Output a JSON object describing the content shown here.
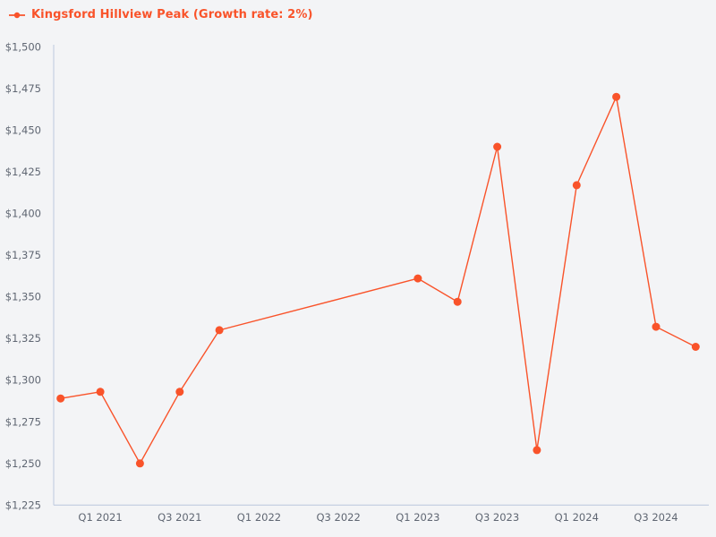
{
  "legend": {
    "label": "Kingsford Hillview Peak (Growth rate: 2%)"
  },
  "colors": {
    "accent": "#f9532a",
    "background": "#f3f4f6",
    "axis_line": "#c5cfe2",
    "tick_text": "#5f6672"
  },
  "chart_data": {
    "type": "line",
    "title": "Kingsford Hillview Peak (Growth rate: 2%)",
    "legend_position": "upper-left",
    "grid": false,
    "xlabel": "",
    "ylabel": "",
    "ylim": [
      1225,
      1500
    ],
    "y_tick_step": 25,
    "y_ticks": [
      {
        "label": "$1,500",
        "value": 1500
      },
      {
        "label": "$1,475",
        "value": 1475
      },
      {
        "label": "$1,450",
        "value": 1450
      },
      {
        "label": "$1,425",
        "value": 1425
      },
      {
        "label": "$1,400",
        "value": 1400
      },
      {
        "label": "$1,375",
        "value": 1375
      },
      {
        "label": "$1,350",
        "value": 1350
      },
      {
        "label": "$1,325",
        "value": 1325
      },
      {
        "label": "$1,300",
        "value": 1300
      },
      {
        "label": "$1,275",
        "value": 1275
      },
      {
        "label": "$1,250",
        "value": 1250
      },
      {
        "label": "$1,225",
        "value": 1225
      }
    ],
    "x_ticks": [
      {
        "label": "Q1 2021",
        "q": 1
      },
      {
        "label": "Q3 2021",
        "q": 3
      },
      {
        "label": "Q1 2022",
        "q": 5
      },
      {
        "label": "Q3 2022",
        "q": 7
      },
      {
        "label": "Q1 2023",
        "q": 9
      },
      {
        "label": "Q3 2023",
        "q": 11
      },
      {
        "label": "Q1 2024",
        "q": 13
      },
      {
        "label": "Q3 2024",
        "q": 15
      }
    ],
    "x_axis_unit": "quarter",
    "series": [
      {
        "name": "Kingsford Hillview Peak (Growth rate: 2%)",
        "color": "#f9532a",
        "marker": "circle",
        "points": [
          {
            "quarter": "Q4 2020",
            "q": 0,
            "value": 1289
          },
          {
            "quarter": "Q1 2021",
            "q": 1,
            "value": 1293
          },
          {
            "quarter": "Q2 2021",
            "q": 2,
            "value": 1250
          },
          {
            "quarter": "Q3 2021",
            "q": 3,
            "value": 1293
          },
          {
            "quarter": "Q4 2021",
            "q": 4,
            "value": 1330
          },
          {
            "quarter": "Q1 2023",
            "q": 9,
            "value": 1361
          },
          {
            "quarter": "Q2 2023",
            "q": 10,
            "value": 1347
          },
          {
            "quarter": "Q3 2023",
            "q": 11,
            "value": 1440
          },
          {
            "quarter": "Q4 2023",
            "q": 12,
            "value": 1258
          },
          {
            "quarter": "Q1 2024",
            "q": 13,
            "value": 1417
          },
          {
            "quarter": "Q2 2024",
            "q": 14,
            "value": 1470
          },
          {
            "quarter": "Q3 2024",
            "q": 15,
            "value": 1332
          },
          {
            "quarter": "Q4 2024",
            "q": 16,
            "value": 1320
          }
        ]
      }
    ]
  }
}
